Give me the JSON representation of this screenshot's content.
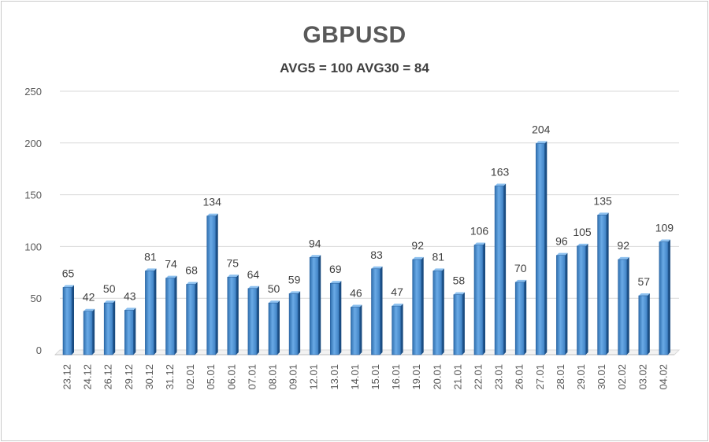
{
  "chart_data": {
    "type": "bar",
    "title": "GBPUSD",
    "subtitle": "AVG5 = 100 AVG30 = 84",
    "xlabel": "",
    "ylabel": "",
    "ylim": [
      0,
      250
    ],
    "yticks": [
      "0",
      "50",
      "100",
      "150",
      "200",
      "250"
    ],
    "grid": true,
    "bar_color": "#4f93d2",
    "categories": [
      "23.12",
      "24.12",
      "26.12",
      "29.12",
      "30.12",
      "31.12",
      "02.01",
      "05.01",
      "06.01",
      "07.01",
      "08.01",
      "09.01",
      "12.01",
      "13.01",
      "14.01",
      "15.01",
      "16.01",
      "19.01",
      "20.01",
      "21.01",
      "22.01",
      "23.01",
      "26.01",
      "27.01",
      "28.01",
      "29.01",
      "30.01",
      "02.02",
      "03.02",
      "04.02"
    ],
    "values": [
      65,
      42,
      50,
      43,
      81,
      74,
      68,
      134,
      75,
      64,
      50,
      59,
      94,
      69,
      46,
      83,
      47,
      92,
      81,
      58,
      106,
      163,
      70,
      204,
      96,
      105,
      135,
      92,
      57,
      109
    ]
  }
}
